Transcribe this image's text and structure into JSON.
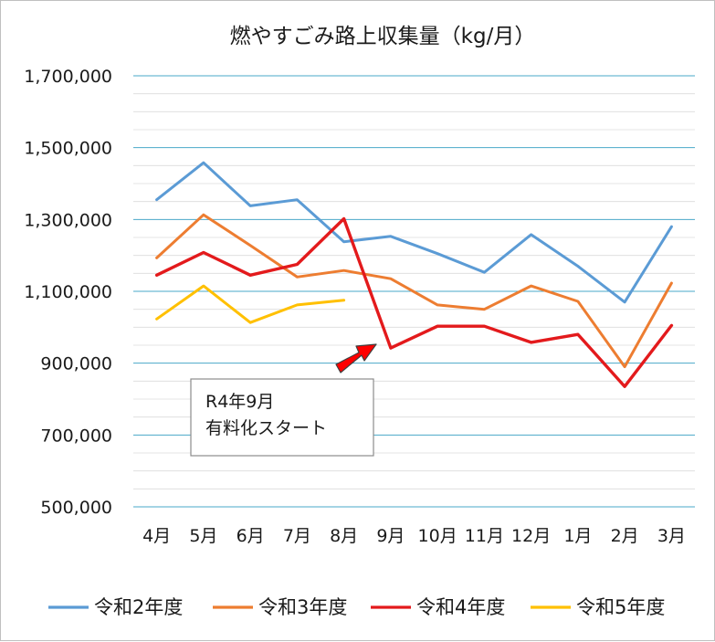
{
  "chart_data": {
    "type": "line",
    "title": "燃やすごみ路上収集量（kg/月）",
    "xlabel": "",
    "ylabel": "",
    "categories": [
      "4月",
      "5月",
      "6月",
      "7月",
      "8月",
      "9月",
      "10月",
      "11月",
      "12月",
      "1月",
      "2月",
      "3月"
    ],
    "ylim": [
      500000,
      1700000
    ],
    "yticks": [
      "500,000",
      "700,000",
      "900,000",
      "1,100,000",
      "1,300,000",
      "1,500,000",
      "1,700,000"
    ],
    "grid": true,
    "legend_position": "bottom",
    "series": [
      {
        "name": "令和2年度",
        "color": "#5b9bd5",
        "values": [
          1355000,
          1458000,
          1338000,
          1355000,
          1238000,
          1253000,
          1205000,
          1153000,
          1258000,
          1170000,
          1070000,
          1280000
        ]
      },
      {
        "name": "令和3年度",
        "color": "#ed7d31",
        "values": [
          1193000,
          1313000,
          1228000,
          1140000,
          1158000,
          1135000,
          1062000,
          1050000,
          1115000,
          1072000,
          890000,
          1123000
        ]
      },
      {
        "name": "令和4年度",
        "color": "#e31a1c",
        "values": [
          1145000,
          1208000,
          1145000,
          1175000,
          1302000,
          942000,
          1003000,
          1003000,
          958000,
          980000,
          835000,
          1005000
        ]
      },
      {
        "name": "令和5年度",
        "color": "#ffc000",
        "values": [
          1023000,
          1115000,
          1013000,
          1062000,
          1075000,
          null,
          null,
          null,
          null,
          null,
          null,
          null
        ]
      }
    ],
    "annotation": {
      "line1": "R4年9月",
      "line2": "有料化スタート"
    }
  }
}
